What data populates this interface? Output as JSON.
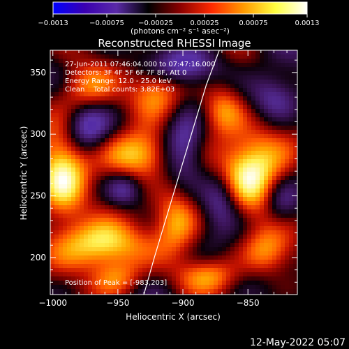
{
  "chart_data": {
    "type": "heatmap",
    "title": "Reconstructed RHESSI Image",
    "xlabel": "Heliocentric X (arcsec)",
    "ylabel": "Heliocentric Y (arcsec)",
    "xlim": [
      -1002,
      -812
    ],
    "ylim": [
      170,
      368
    ],
    "x_ticks": [
      -1000,
      -950,
      -900,
      -850
    ],
    "y_ticks": [
      200,
      250,
      300,
      350
    ],
    "x_tick_labels": [
      "−1000",
      "−950",
      "−900",
      "−850"
    ],
    "y_tick_labels": [
      "200",
      "250",
      "300",
      "350"
    ],
    "colorbar": {
      "range": [
        -0.0013,
        0.0013
      ],
      "tick_values": [
        -0.0013,
        -0.00075,
        -0.00025,
        0.00025,
        0.00075,
        0.0013
      ],
      "tick_labels": [
        "−0.0013",
        "−0.00075",
        "−0.00025",
        "0.00025",
        "0.00075",
        "0.0013"
      ],
      "units": "(photons cm⁻² s⁻¹ asec⁻²)",
      "colors": [
        "#0000ff",
        "#3a00b0",
        "#5a2aa8",
        "#000000",
        "#8a0000",
        "#ff2a00",
        "#ff9a00",
        "#ffff40",
        "#ffffff"
      ]
    },
    "annotations": {
      "time_range": "27-Jun-2011 07:46:04.000 to 07:47:16.000",
      "detectors": "Detectors: 3F 4F 5F 6F 7F 8F, Att 0",
      "energy_range": "Energy Range: 12.0 - 25.0 keV",
      "method_counts": "Clean    Total counts: 3.82E+03",
      "peak_position": "Position of Peak = [-983,203]"
    },
    "limb_curve": {
      "x": [
        -930,
        -922,
        -912,
        -902,
        -892,
        -882,
        -872
      ],
      "y": [
        170,
        200,
        235,
        270,
        305,
        340,
        368
      ]
    },
    "blobs": [
      {
        "x": -993,
        "y": 265,
        "amp": 1.05,
        "sx": 14,
        "sy": 28
      },
      {
        "x": -963,
        "y": 210,
        "amp": 1.1,
        "sx": 22,
        "sy": 14
      },
      {
        "x": -935,
        "y": 284,
        "amp": 1.05,
        "sx": 18,
        "sy": 14
      },
      {
        "x": -845,
        "y": 272,
        "amp": 1.15,
        "sx": 20,
        "sy": 24
      },
      {
        "x": -905,
        "y": 232,
        "amp": 0.75,
        "sx": 12,
        "sy": 20
      },
      {
        "x": -975,
        "y": 335,
        "amp": 0.7,
        "sx": 15,
        "sy": 15
      },
      {
        "x": -920,
        "y": 335,
        "amp": 0.65,
        "sx": 14,
        "sy": 14
      },
      {
        "x": -870,
        "y": 320,
        "amp": 0.7,
        "sx": 12,
        "sy": 14
      },
      {
        "x": -835,
        "y": 205,
        "amp": 0.7,
        "sx": 14,
        "sy": 14
      },
      {
        "x": -880,
        "y": 185,
        "amp": 0.6,
        "sx": 16,
        "sy": 10
      },
      {
        "x": -950,
        "y": 183,
        "amp": 0.6,
        "sx": 14,
        "sy": 10
      },
      {
        "x": -975,
        "y": 305,
        "amp": -0.7,
        "sx": 12,
        "sy": 16
      },
      {
        "x": -900,
        "y": 290,
        "amp": -0.8,
        "sx": 12,
        "sy": 18
      },
      {
        "x": -870,
        "y": 250,
        "amp": -0.65,
        "sx": 10,
        "sy": 16
      },
      {
        "x": -825,
        "y": 245,
        "amp": -0.6,
        "sx": 10,
        "sy": 14
      },
      {
        "x": -945,
        "y": 255,
        "amp": -0.55,
        "sx": 10,
        "sy": 10
      },
      {
        "x": -830,
        "y": 330,
        "amp": -0.6,
        "sx": 14,
        "sy": 14
      },
      {
        "x": -900,
        "y": 355,
        "amp": -0.55,
        "sx": 20,
        "sy": 10
      }
    ]
  },
  "footer": {
    "date": "12-May-2022 05:07"
  }
}
